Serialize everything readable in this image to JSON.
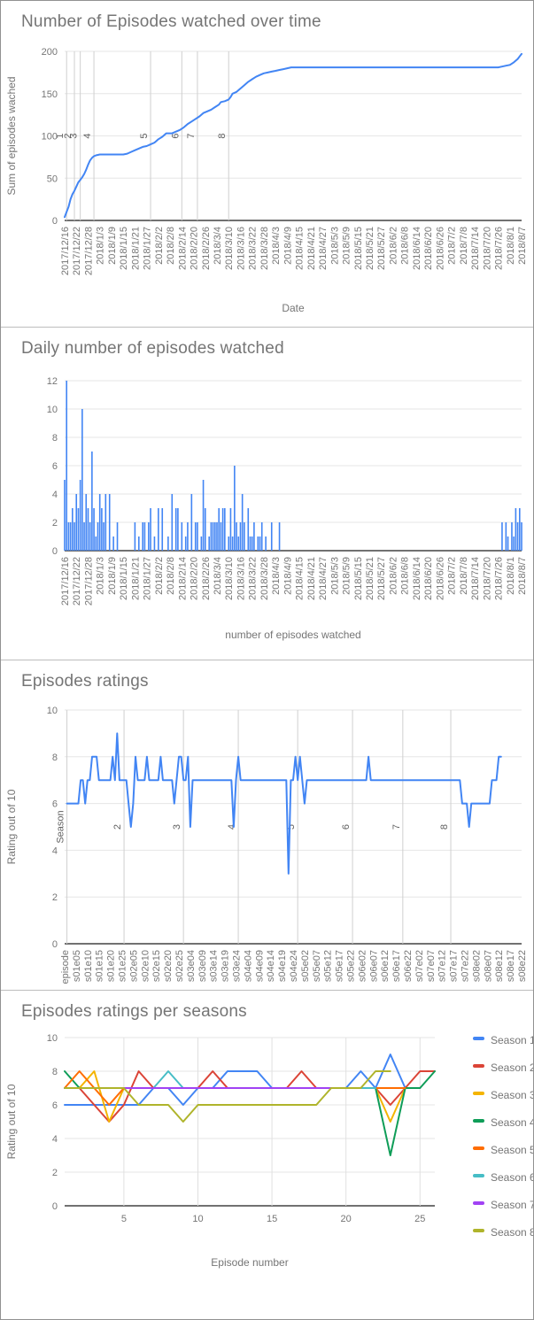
{
  "chart_data": [
    {
      "type": "line",
      "title": "Number of Episodes watched over time",
      "ylabel": "Sum of episodes wached",
      "xlabel": "Date",
      "color": "#4285F4",
      "ylim": [
        0,
        200
      ],
      "yticks": [
        0,
        50,
        100,
        150,
        200
      ],
      "x_min": 0,
      "x_max": 234,
      "x_tick_labels": [
        "2017/12/16",
        "2017/12/22",
        "2017/12/28",
        "2018/1/3",
        "2018/1/9",
        "2018/1/15",
        "2018/1/21",
        "2018/1/27",
        "2018/2/2",
        "2018/2/8",
        "2018/2/14",
        "2018/2/20",
        "2018/2/26",
        "2018/3/4",
        "2018/3/10",
        "2018/3/16",
        "2018/3/22",
        "2018/3/28",
        "2018/4/3",
        "2018/4/9",
        "2018/4/15",
        "2018/4/21",
        "2018/4/27",
        "2018/5/3",
        "2018/5/9",
        "2018/5/15",
        "2018/5/21",
        "2018/5/27",
        "2018/6/2",
        "2018/6/8",
        "2018/6/14",
        "2018/6/20",
        "2018/6/26",
        "2018/7/2",
        "2018/7/8",
        "2018/7/14",
        "2018/7/20",
        "2018/7/26",
        "2018/8/1",
        "2018/8/7"
      ],
      "annotations": [
        {
          "pos": 1,
          "label": "1"
        },
        {
          "pos": 5,
          "label": "2"
        },
        {
          "pos": 8,
          "label": "3"
        },
        {
          "pos": 15,
          "label": "4"
        },
        {
          "pos": 44,
          "label": "5"
        },
        {
          "pos": 60,
          "label": "6"
        },
        {
          "pos": 68,
          "label": "7"
        },
        {
          "pos": 84,
          "label": "8"
        }
      ],
      "points": [
        [
          0,
          4
        ],
        [
          1,
          10
        ],
        [
          2,
          16
        ],
        [
          3,
          25
        ],
        [
          4,
          31
        ],
        [
          5,
          35
        ],
        [
          6,
          40
        ],
        [
          7,
          45
        ],
        [
          8,
          48
        ],
        [
          9,
          51
        ],
        [
          10,
          55
        ],
        [
          11,
          60
        ],
        [
          12,
          66
        ],
        [
          13,
          71
        ],
        [
          14,
          74
        ],
        [
          15,
          76
        ],
        [
          16,
          77
        ],
        [
          18,
          78
        ],
        [
          30,
          78
        ],
        [
          32,
          79
        ],
        [
          34,
          81
        ],
        [
          36,
          83
        ],
        [
          38,
          85
        ],
        [
          40,
          87
        ],
        [
          42,
          88
        ],
        [
          44,
          90
        ],
        [
          46,
          92
        ],
        [
          47,
          94
        ],
        [
          48,
          96
        ],
        [
          50,
          99
        ],
        [
          52,
          103
        ],
        [
          55,
          103
        ],
        [
          57,
          105
        ],
        [
          59,
          107
        ],
        [
          61,
          110
        ],
        [
          63,
          114
        ],
        [
          65,
          117
        ],
        [
          67,
          120
        ],
        [
          69,
          123
        ],
        [
          71,
          127
        ],
        [
          73,
          129
        ],
        [
          75,
          131
        ],
        [
          77,
          134
        ],
        [
          79,
          137
        ],
        [
          80,
          140
        ],
        [
          82,
          141
        ],
        [
          84,
          143
        ],
        [
          85,
          146
        ],
        [
          86,
          150
        ],
        [
          88,
          152
        ],
        [
          90,
          156
        ],
        [
          92,
          160
        ],
        [
          94,
          164
        ],
        [
          96,
          167
        ],
        [
          98,
          170
        ],
        [
          100,
          172
        ],
        [
          102,
          174
        ],
        [
          104,
          175
        ],
        [
          106,
          176
        ],
        [
          108,
          177
        ],
        [
          110,
          178
        ],
        [
          112,
          179
        ],
        [
          114,
          180
        ],
        [
          116,
          181
        ],
        [
          222,
          181
        ],
        [
          224,
          182
        ],
        [
          226,
          183
        ],
        [
          228,
          184
        ],
        [
          230,
          187
        ],
        [
          232,
          191
        ],
        [
          233,
          194
        ],
        [
          234,
          197
        ]
      ]
    },
    {
      "type": "bar",
      "title": "Daily number of episodes watched",
      "xlabel": "number of episodes watched",
      "color": "#4285F4",
      "ylim": [
        0,
        12
      ],
      "yticks": [
        0,
        2,
        4,
        6,
        8,
        10,
        12
      ],
      "x_min": 0,
      "x_max": 234,
      "x_tick_labels": [
        "2017/12/16",
        "2017/12/22",
        "2017/12/28",
        "2018/1/3",
        "2018/1/9",
        "2018/1/15",
        "2018/1/21",
        "2018/1/27",
        "2018/2/2",
        "2018/2/8",
        "2018/2/14",
        "2018/2/20",
        "2018/2/26",
        "2018/3/4",
        "2018/3/10",
        "2018/3/16",
        "2018/3/22",
        "2018/3/28",
        "2018/4/3",
        "2018/4/9",
        "2018/4/15",
        "2018/4/21",
        "2018/4/27",
        "2018/5/3",
        "2018/5/9",
        "2018/5/15",
        "2018/5/21",
        "2018/5/27",
        "2018/6/2",
        "2018/6/8",
        "2018/6/14",
        "2018/6/20",
        "2018/6/26",
        "2018/7/2",
        "2018/7/8",
        "2018/7/14",
        "2018/7/20",
        "2018/7/26",
        "2018/8/1",
        "2018/8/7"
      ],
      "bars": [
        [
          0,
          5
        ],
        [
          1,
          12
        ],
        [
          2,
          2
        ],
        [
          3,
          2
        ],
        [
          4,
          3
        ],
        [
          5,
          2
        ],
        [
          6,
          4
        ],
        [
          7,
          3
        ],
        [
          8,
          5
        ],
        [
          9,
          10
        ],
        [
          10,
          2
        ],
        [
          11,
          4
        ],
        [
          12,
          3
        ],
        [
          13,
          2
        ],
        [
          14,
          7
        ],
        [
          15,
          3
        ],
        [
          16,
          1
        ],
        [
          17,
          2
        ],
        [
          18,
          4
        ],
        [
          19,
          3
        ],
        [
          20,
          2
        ],
        [
          21,
          4
        ],
        [
          23,
          4
        ],
        [
          25,
          1
        ],
        [
          27,
          2
        ],
        [
          36,
          2
        ],
        [
          38,
          1
        ],
        [
          40,
          2
        ],
        [
          41,
          2
        ],
        [
          43,
          2
        ],
        [
          44,
          3
        ],
        [
          46,
          1
        ],
        [
          48,
          3
        ],
        [
          50,
          3
        ],
        [
          53,
          1
        ],
        [
          55,
          4
        ],
        [
          57,
          3
        ],
        [
          58,
          3
        ],
        [
          60,
          2
        ],
        [
          62,
          1
        ],
        [
          63,
          2
        ],
        [
          65,
          4
        ],
        [
          67,
          2
        ],
        [
          68,
          2
        ],
        [
          70,
          1
        ],
        [
          71,
          5
        ],
        [
          72,
          3
        ],
        [
          74,
          1
        ],
        [
          75,
          2
        ],
        [
          76,
          2
        ],
        [
          77,
          2
        ],
        [
          78,
          2
        ],
        [
          79,
          3
        ],
        [
          80,
          2
        ],
        [
          81,
          3
        ],
        [
          82,
          3
        ],
        [
          84,
          1
        ],
        [
          85,
          3
        ],
        [
          86,
          1
        ],
        [
          87,
          6
        ],
        [
          88,
          2
        ],
        [
          89,
          1
        ],
        [
          90,
          2
        ],
        [
          91,
          4
        ],
        [
          92,
          2
        ],
        [
          94,
          3
        ],
        [
          95,
          1
        ],
        [
          96,
          1
        ],
        [
          97,
          2
        ],
        [
          99,
          1
        ],
        [
          100,
          1
        ],
        [
          101,
          2
        ],
        [
          103,
          1
        ],
        [
          106,
          2
        ],
        [
          110,
          2
        ],
        [
          224,
          2
        ],
        [
          226,
          2
        ],
        [
          227,
          1
        ],
        [
          229,
          2
        ],
        [
          230,
          1
        ],
        [
          231,
          3
        ],
        [
          232,
          2
        ],
        [
          233,
          3
        ],
        [
          234,
          2
        ]
      ]
    },
    {
      "type": "line",
      "title": "Episodes ratings",
      "ylabel": "Rating out of 10",
      "color": "#4285F4",
      "ylim": [
        0,
        10
      ],
      "yticks": [
        0,
        2,
        4,
        6,
        8,
        10
      ],
      "x_min": 0,
      "x_max": 200,
      "x_offset": 1,
      "x_tick_labels": [
        "episode",
        "s01e05",
        "s01e10",
        "s01e15",
        "s01e20",
        "s01e25",
        "s02e05",
        "s02e10",
        "s02e15",
        "s02e20",
        "s02e25",
        "s03e04",
        "s03e09",
        "s03e14",
        "s03e19",
        "s03e24",
        "s04e04",
        "s04e09",
        "s04e14",
        "s04e19",
        "s04e24",
        "s05e02",
        "s05e07",
        "s05e12",
        "s05e17",
        "s05e22",
        "s06e02",
        "s06e07",
        "s06e12",
        "s06e17",
        "s06e22",
        "s07e02",
        "s07e07",
        "s07e12",
        "s07e17",
        "s07e22",
        "s08e02",
        "s08e07",
        "s08e12",
        "s08e17",
        "s08e22"
      ],
      "annotations": [
        {
          "pos": 1,
          "label": "Season"
        },
        {
          "pos": 26,
          "label": "2"
        },
        {
          "pos": 52,
          "label": "3"
        },
        {
          "pos": 76,
          "label": "4"
        },
        {
          "pos": 102,
          "label": "5"
        },
        {
          "pos": 126,
          "label": "6"
        },
        {
          "pos": 148,
          "label": "7"
        },
        {
          "pos": 169,
          "label": "8"
        }
      ],
      "values": [
        6,
        6,
        6,
        6,
        6,
        6,
        7,
        7,
        6,
        7,
        7,
        8,
        8,
        8,
        7,
        7,
        7,
        7,
        7,
        7,
        8,
        7,
        9,
        7,
        7,
        7,
        7,
        6,
        5,
        6,
        8,
        7,
        7,
        7,
        7,
        8,
        7,
        7,
        7,
        7,
        7,
        8,
        7,
        7,
        7,
        7,
        7,
        6,
        7,
        8,
        8,
        7,
        7,
        8,
        5,
        7,
        7,
        7,
        7,
        7,
        7,
        7,
        7,
        7,
        7,
        7,
        7,
        7,
        7,
        7,
        7,
        7,
        7,
        5,
        7,
        8,
        7,
        7,
        7,
        7,
        7,
        7,
        7,
        7,
        7,
        7,
        7,
        7,
        7,
        7,
        7,
        7,
        7,
        7,
        7,
        7,
        7,
        3,
        7,
        7,
        8,
        7,
        8,
        7,
        6,
        7,
        7,
        7,
        7,
        7,
        7,
        7,
        7,
        7,
        7,
        7,
        7,
        7,
        7,
        7,
        7,
        7,
        7,
        7,
        7,
        7,
        7,
        7,
        7,
        7,
        7,
        7,
        8,
        7,
        7,
        7,
        7,
        7,
        7,
        7,
        7,
        7,
        7,
        7,
        7,
        7,
        7,
        7,
        7,
        7,
        7,
        7,
        7,
        7,
        7,
        7,
        7,
        7,
        7,
        7,
        7,
        7,
        7,
        7,
        7,
        7,
        7,
        7,
        7,
        7,
        7,
        7,
        7,
        6,
        6,
        6,
        5,
        6,
        6,
        6,
        6,
        6,
        6,
        6,
        6,
        6,
        7,
        7,
        7,
        8,
        8
      ]
    },
    {
      "type": "line",
      "title": "Episodes ratings per seasons",
      "ylabel": "Rating out of 10",
      "xlabel": "Episode number",
      "ylim": [
        0,
        10
      ],
      "yticks": [
        0,
        2,
        4,
        6,
        8,
        10
      ],
      "x_min": 1,
      "x_max": 26,
      "x_ticks": [
        5,
        10,
        15,
        20,
        25
      ],
      "legend_position": "right",
      "series": [
        {
          "name": "Season 1",
          "color": "#4285F4",
          "values": [
            6,
            6,
            6,
            6,
            6,
            6,
            7,
            7,
            6,
            7,
            7,
            8,
            8,
            8,
            7,
            7,
            7,
            7,
            7,
            7,
            8,
            7,
            9,
            7,
            7
          ]
        },
        {
          "name": "Season 2",
          "color": "#DB4437",
          "values": [
            7,
            7,
            6,
            5,
            6,
            8,
            7,
            7,
            7,
            7,
            8,
            7,
            7,
            7,
            7,
            7,
            8,
            7,
            7,
            7,
            7,
            7,
            6,
            7,
            8,
            8
          ]
        },
        {
          "name": "Season 3",
          "color": "#F4B400",
          "values": [
            7,
            7,
            8,
            5,
            7,
            7,
            7,
            7,
            7,
            7,
            7,
            7,
            7,
            7,
            7,
            7,
            7,
            7,
            7,
            7,
            7,
            7,
            5,
            7
          ]
        },
        {
          "name": "Season 4",
          "color": "#0F9D58",
          "values": [
            8,
            7,
            7,
            7,
            7,
            7,
            7,
            7,
            7,
            7,
            7,
            7,
            7,
            7,
            7,
            7,
            7,
            7,
            7,
            7,
            7,
            7,
            3,
            7,
            7,
            8
          ]
        },
        {
          "name": "Season 5",
          "color": "#FF6D01",
          "values": [
            7,
            8,
            7,
            6,
            7,
            7,
            7,
            7,
            7,
            7,
            7,
            7,
            7,
            7,
            7,
            7,
            7,
            7,
            7,
            7,
            7,
            7,
            7,
            7
          ]
        },
        {
          "name": "Season 6",
          "color": "#46BDC6",
          "values": [
            7,
            7,
            7,
            7,
            7,
            7,
            7,
            8,
            7,
            7,
            7,
            7,
            7,
            7,
            7,
            7,
            7,
            7,
            7,
            7,
            7,
            7
          ]
        },
        {
          "name": "Season 7",
          "color": "#A142F4",
          "values": [
            7,
            7,
            7,
            7,
            7,
            7,
            7,
            7,
            7,
            7,
            7,
            7,
            7,
            7,
            7,
            7,
            7,
            7,
            7,
            7,
            7
          ]
        },
        {
          "name": "Season 8",
          "color": "#AFB42B",
          "values": [
            7,
            7,
            7,
            7,
            7,
            6,
            6,
            6,
            5,
            6,
            6,
            6,
            6,
            6,
            6,
            6,
            6,
            6,
            7,
            7,
            7,
            8,
            8
          ]
        }
      ]
    }
  ]
}
